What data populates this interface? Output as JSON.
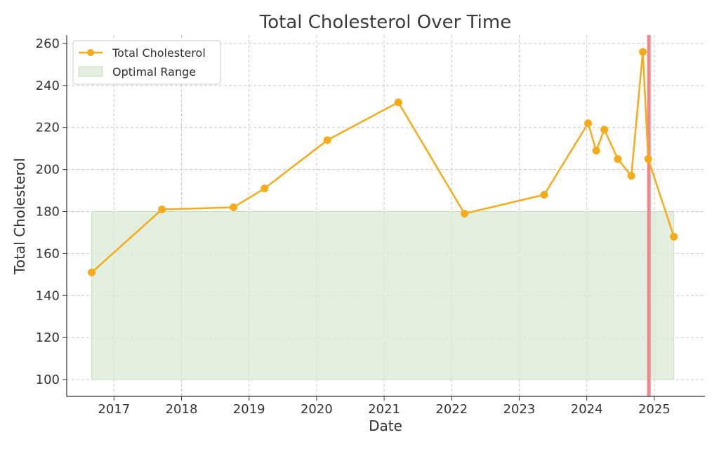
{
  "chart_data": {
    "type": "line",
    "title": "Total Cholesterol Over Time",
    "xlabel": "Date",
    "ylabel": "Total Cholesterol",
    "xlim": [
      2016.3,
      2025.75
    ],
    "ylim": [
      92,
      264
    ],
    "yticks": [
      100,
      120,
      140,
      160,
      180,
      200,
      220,
      240,
      260
    ],
    "xticks": [
      "2017",
      "2018",
      "2019",
      "2020",
      "2021",
      "2022",
      "2023",
      "2024",
      "2025"
    ],
    "grid": true,
    "legend_position": "top-left",
    "series": [
      {
        "name": "Total Cholesterol",
        "color": "#f5ab1a",
        "x": [
          2016.67,
          2017.71,
          2018.77,
          2019.23,
          2020.16,
          2021.21,
          2022.19,
          2023.37,
          2024.02,
          2024.14,
          2024.26,
          2024.46,
          2024.66,
          2024.83,
          2024.91,
          2025.29
        ],
        "y": [
          151,
          181,
          182,
          191,
          214,
          232,
          179,
          188,
          222,
          209,
          219,
          205,
          197,
          256,
          205,
          168
        ]
      }
    ],
    "optimal_range": {
      "name": "Optimal Range",
      "color": "#d9ead3",
      "x_start": 2016.67,
      "x_end": 2025.29,
      "y_min": 100,
      "y_max": 180
    },
    "marker_line": {
      "x": 2024.92,
      "color": "#f08a8a"
    }
  }
}
